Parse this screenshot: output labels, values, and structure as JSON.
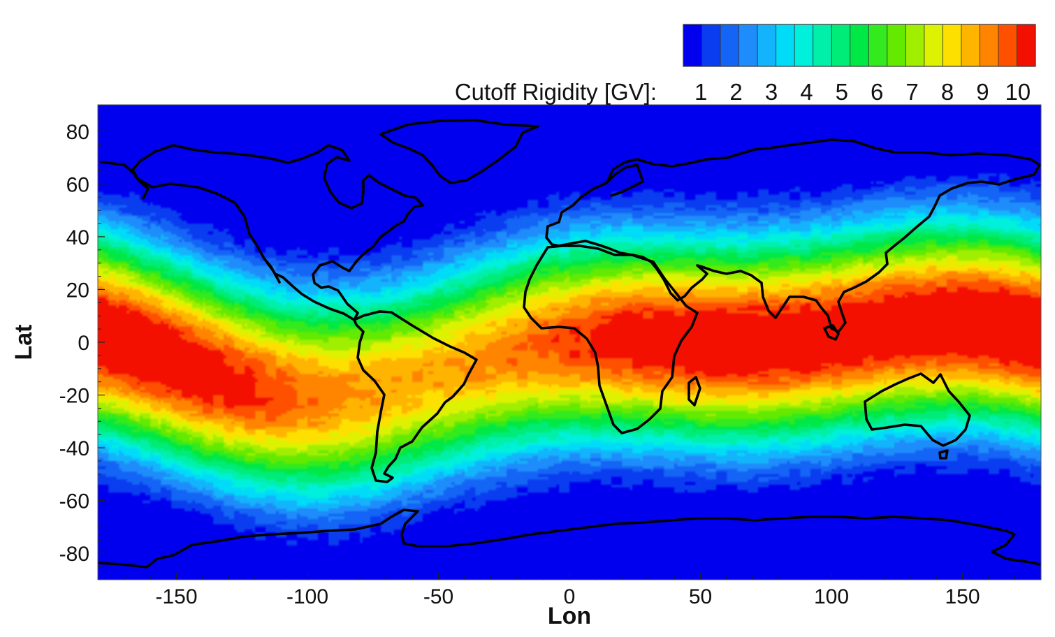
{
  "chart_data": {
    "type": "heatmap",
    "subtype": "world-map-contour",
    "x_axis": {
      "label": "Lon",
      "range": [
        -180,
        180
      ],
      "ticks": [
        -150,
        -100,
        -50,
        0,
        50,
        100,
        150
      ],
      "tick_labels": [
        "-150",
        "-100",
        "-50",
        "0",
        "50",
        "100",
        "150"
      ]
    },
    "y_axis": {
      "label": "Lat",
      "range": [
        -90,
        90
      ],
      "ticks": [
        80,
        60,
        40,
        20,
        0,
        -20,
        -40,
        -60,
        -80
      ],
      "tick_labels": [
        "80",
        "60",
        "40",
        "20",
        "0",
        "-20",
        "-40",
        "-60",
        "-80"
      ]
    },
    "colorbar": {
      "label": "Cutoff Rigidity [GV]:",
      "placement": "top-right",
      "range": [
        0.5,
        10.5
      ],
      "tick_values": [
        1,
        2,
        3,
        4,
        5,
        6,
        7,
        8,
        9,
        10
      ],
      "tick_labels": [
        "1",
        "2",
        "3",
        "4",
        "5",
        "6",
        "7",
        "8",
        "9",
        "10"
      ],
      "levels": 19,
      "colors": [
        "#0000ee",
        "#0a3cf0",
        "#1464f5",
        "#1e8cfa",
        "#14b4fc",
        "#00dcf8",
        "#00f0dc",
        "#00f0aa",
        "#00ec78",
        "#00e846",
        "#32ea1e",
        "#64ea00",
        "#a0ee00",
        "#dcf200",
        "#fde000",
        "#ffb400",
        "#ff8400",
        "#ff5000",
        "#f41000"
      ]
    },
    "grid": false,
    "z_description": "geomagnetic vertical cutoff rigidity in GV; max about 10 over 80E-160E near equator, about 9 over central Pacific, below 1 poleward of 60 deg",
    "coastlines": true
  }
}
